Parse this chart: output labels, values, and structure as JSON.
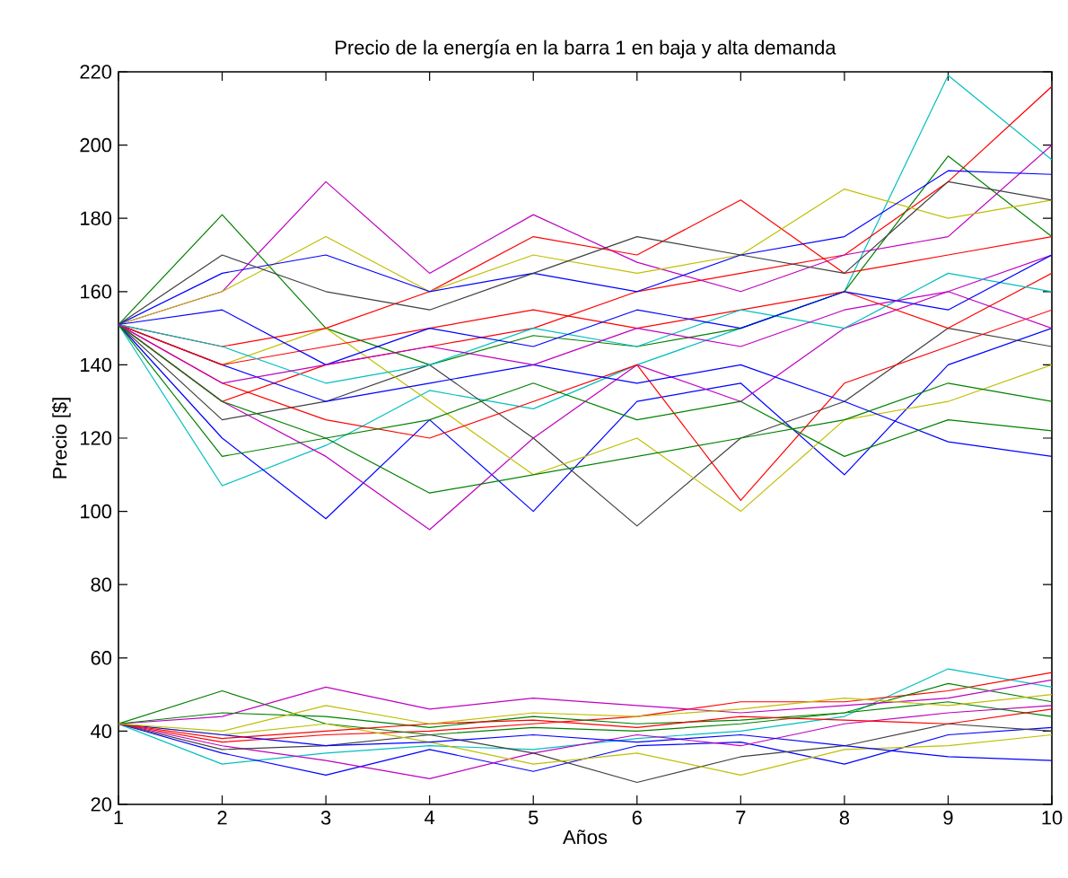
{
  "chart_data": {
    "type": "line",
    "title": "Precio de la energía en la barra 1 en baja y alta demanda",
    "xlabel": "Años",
    "ylabel": "Precio [$]",
    "x": [
      1,
      2,
      3,
      4,
      5,
      6,
      7,
      8,
      9,
      10
    ],
    "xlim": [
      1,
      10
    ],
    "xticks": [
      1,
      2,
      3,
      4,
      5,
      6,
      7,
      8,
      9,
      10
    ],
    "ylim": [
      20,
      220
    ],
    "yticks": [
      20,
      40,
      60,
      80,
      100,
      120,
      140,
      160,
      180,
      200,
      220
    ],
    "line_style": "solid",
    "series": [
      {
        "color": "#00bfbf",
        "values": [
          151,
          107,
          118,
          133,
          128,
          140,
          150,
          160,
          219,
          196
        ]
      },
      {
        "color": "#ff0000",
        "values": [
          151,
          130,
          140,
          145,
          150,
          160,
          165,
          170,
          190,
          216
        ]
      },
      {
        "color": "#008000",
        "values": [
          151,
          181,
          150,
          140,
          148,
          145,
          150,
          160,
          197,
          175
        ]
      },
      {
        "color": "#bf00bf",
        "values": [
          151,
          160,
          190,
          165,
          181,
          168,
          160,
          170,
          175,
          200
        ]
      },
      {
        "color": "#0000ff",
        "values": [
          151,
          120,
          98,
          125,
          100,
          130,
          135,
          110,
          140,
          150
        ]
      },
      {
        "color": "#bf00bf",
        "values": [
          151,
          130,
          115,
          95,
          120,
          140,
          130,
          150,
          160,
          170
        ]
      },
      {
        "color": "#404040",
        "values": [
          151,
          125,
          130,
          140,
          120,
          96,
          120,
          130,
          150,
          145
        ]
      },
      {
        "color": "#bfbf00",
        "values": [
          151,
          140,
          150,
          130,
          110,
          120,
          100,
          125,
          130,
          140
        ]
      },
      {
        "color": "#ff0000",
        "values": [
          151,
          135,
          125,
          120,
          130,
          140,
          103,
          135,
          145,
          155
        ]
      },
      {
        "color": "#ff0000",
        "values": [
          151,
          145,
          150,
          160,
          175,
          170,
          185,
          165,
          170,
          175
        ]
      },
      {
        "color": "#bfbf00",
        "values": [
          151,
          160,
          175,
          160,
          170,
          165,
          170,
          188,
          180,
          185
        ]
      },
      {
        "color": "#0000ff",
        "values": [
          151,
          140,
          130,
          135,
          140,
          135,
          140,
          130,
          119,
          115
        ]
      },
      {
        "color": "#008000",
        "values": [
          151,
          130,
          120,
          125,
          135,
          125,
          130,
          115,
          125,
          122
        ]
      },
      {
        "color": "#0000ff",
        "values": [
          151,
          165,
          170,
          160,
          165,
          160,
          170,
          175,
          193,
          192
        ]
      },
      {
        "color": "#404040",
        "values": [
          151,
          170,
          160,
          155,
          165,
          175,
          170,
          165,
          190,
          185
        ]
      },
      {
        "color": "#008000",
        "values": [
          151,
          115,
          120,
          105,
          110,
          115,
          120,
          125,
          135,
          130
        ]
      },
      {
        "color": "#ff0000",
        "values": [
          151,
          140,
          145,
          150,
          155,
          150,
          155,
          160,
          150,
          165
        ]
      },
      {
        "color": "#00bfbf",
        "values": [
          151,
          145,
          135,
          140,
          150,
          145,
          155,
          150,
          165,
          160
        ]
      },
      {
        "color": "#0000ff",
        "values": [
          151,
          155,
          140,
          150,
          145,
          155,
          150,
          160,
          155,
          170
        ]
      },
      {
        "color": "#bf00bf",
        "values": [
          151,
          135,
          140,
          145,
          140,
          150,
          145,
          155,
          160,
          150
        ]
      },
      {
        "color": "#00bfbf",
        "values": [
          42,
          31,
          34,
          36,
          35,
          38,
          40,
          44,
          57,
          52
        ]
      },
      {
        "color": "#ff0000",
        "values": [
          42,
          37,
          39,
          40,
          42,
          44,
          48,
          48,
          51,
          56
        ]
      },
      {
        "color": "#008000",
        "values": [
          42,
          51,
          42,
          39,
          41,
          40,
          42,
          45,
          53,
          48
        ]
      },
      {
        "color": "#bf00bf",
        "values": [
          42,
          44,
          52,
          46,
          49,
          47,
          45,
          47,
          49,
          54
        ]
      },
      {
        "color": "#0000ff",
        "values": [
          42,
          34,
          28,
          35,
          29,
          36,
          37,
          31,
          39,
          41
        ]
      },
      {
        "color": "#bf00bf",
        "values": [
          42,
          36,
          32,
          27,
          34,
          39,
          36,
          42,
          45,
          47
        ]
      },
      {
        "color": "#404040",
        "values": [
          42,
          35,
          36,
          39,
          34,
          26,
          33,
          36,
          42,
          40
        ]
      },
      {
        "color": "#bfbf00",
        "values": [
          42,
          39,
          42,
          37,
          31,
          34,
          28,
          35,
          36,
          39
        ]
      },
      {
        "color": "#0000ff",
        "values": [
          42,
          39,
          36,
          37,
          39,
          37,
          39,
          36,
          33,
          32
        ]
      },
      {
        "color": "#008000",
        "values": [
          42,
          45,
          44,
          41,
          44,
          42,
          43,
          45,
          48,
          44
        ]
      },
      {
        "color": "#ff0000",
        "values": [
          42,
          38,
          40,
          42,
          43,
          41,
          44,
          43,
          42,
          46
        ]
      },
      {
        "color": "#bfbf00",
        "values": [
          42,
          40,
          47,
          42,
          45,
          44,
          46,
          49,
          47,
          50
        ]
      }
    ]
  }
}
